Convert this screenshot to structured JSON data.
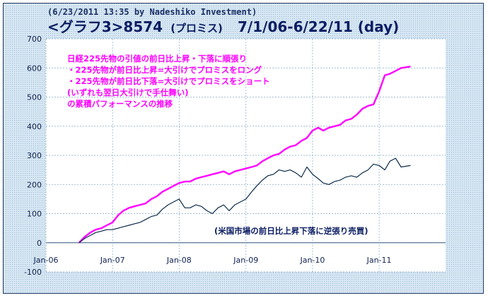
{
  "header": {
    "line1": "(6/23/2011 13:35 by Nadeshiko Investment)",
    "title_main": "<グラフ3>8574",
    "title_sub": "(プロミス)",
    "title_range": "7/1/06-6/22/11 (day)"
  },
  "annotations": {
    "pink": [
      "日経225先物の引値の前日比上昇・下落に順張り",
      "・225先物が前日比上昇=大引けでプロミスをロング",
      "・225先物が前日比下落=大引けでプロミスをショート",
      "(いずれも翌日大引けで手仕舞い)",
      "の累積パフォーマンスの推移"
    ],
    "navy": "(米国市場の前日比上昇下落に逆張り売買)"
  },
  "colors": {
    "background": "#cfe0ee",
    "plot_background": "#ffffff",
    "series1": "#ff00ff",
    "series2": "#0b2a4a",
    "text": "#0b1d63"
  },
  "chart_data": {
    "type": "line",
    "title": "<グラフ3>8574 (プロミス) 7/1/06-6/22/11 (day)",
    "xlabel": "",
    "ylabel": "",
    "x_ticks": [
      "Jan-06",
      "Jan-07",
      "Jan-08",
      "Jan-09",
      "Jan-10",
      "Jan-11"
    ],
    "y_ticks": [
      700,
      600,
      500,
      400,
      300,
      200,
      100,
      0,
      -100
    ],
    "ylim": [
      -100,
      700
    ],
    "xlim": [
      "2006-01-01",
      "2011-12-31"
    ],
    "grid": true,
    "series": [
      {
        "x": [
          "2006-07-01",
          "2006-08-01",
          "2006-09-01",
          "2006-10-01",
          "2006-11-01",
          "2006-12-01",
          "2007-01-01",
          "2007-02-01",
          "2007-03-01",
          "2007-04-01",
          "2007-05-01",
          "2007-06-01",
          "2007-07-01",
          "2007-08-01",
          "2007-09-01",
          "2007-10-01",
          "2007-11-01",
          "2007-12-01",
          "2008-01-01",
          "2008-02-01",
          "2008-03-01",
          "2008-04-01",
          "2008-05-01",
          "2008-06-01",
          "2008-07-01",
          "2008-08-01",
          "2008-09-01",
          "2008-10-01",
          "2008-11-01",
          "2008-12-01",
          "2009-01-01",
          "2009-02-01",
          "2009-03-01",
          "2009-04-01",
          "2009-05-01",
          "2009-06-01",
          "2009-07-01",
          "2009-08-01",
          "2009-09-01",
          "2009-10-01",
          "2009-11-01",
          "2009-12-01",
          "2010-01-01",
          "2010-02-01",
          "2010-03-01",
          "2010-04-01",
          "2010-05-01",
          "2010-06-01",
          "2010-07-01",
          "2010-08-01",
          "2010-09-01",
          "2010-10-01",
          "2010-11-01",
          "2010-12-01",
          "2011-01-01",
          "2011-02-01",
          "2011-03-01",
          "2011-04-01",
          "2011-05-01",
          "2011-06-22"
        ],
        "values": [
          0,
          20,
          35,
          45,
          50,
          60,
          70,
          95,
          110,
          120,
          125,
          130,
          135,
          150,
          160,
          175,
          185,
          195,
          205,
          210,
          210,
          220,
          225,
          230,
          235,
          240,
          245,
          235,
          245,
          250,
          255,
          260,
          265,
          280,
          290,
          300,
          305,
          320,
          330,
          335,
          350,
          360,
          385,
          395,
          385,
          395,
          400,
          405,
          420,
          425,
          440,
          460,
          470,
          475,
          520,
          575,
          580,
          590,
          600,
          605
        ]
      },
      {
        "x": [
          "2006-07-01",
          "2006-08-01",
          "2006-09-01",
          "2006-10-01",
          "2006-11-01",
          "2006-12-01",
          "2007-01-01",
          "2007-02-01",
          "2007-03-01",
          "2007-04-01",
          "2007-05-01",
          "2007-06-01",
          "2007-07-01",
          "2007-08-01",
          "2007-09-01",
          "2007-10-01",
          "2007-11-01",
          "2007-12-01",
          "2008-01-01",
          "2008-02-01",
          "2008-03-01",
          "2008-04-01",
          "2008-05-01",
          "2008-06-01",
          "2008-07-01",
          "2008-08-01",
          "2008-09-01",
          "2008-10-01",
          "2008-11-01",
          "2008-12-01",
          "2009-01-01",
          "2009-02-01",
          "2009-03-01",
          "2009-04-01",
          "2009-05-01",
          "2009-06-01",
          "2009-07-01",
          "2009-08-01",
          "2009-09-01",
          "2009-10-01",
          "2009-11-01",
          "2009-12-01",
          "2010-01-01",
          "2010-02-01",
          "2010-03-01",
          "2010-04-01",
          "2010-05-01",
          "2010-06-01",
          "2010-07-01",
          "2010-08-01",
          "2010-09-01",
          "2010-10-01",
          "2010-11-01",
          "2010-12-01",
          "2011-01-01",
          "2011-02-01",
          "2011-03-01",
          "2011-04-01",
          "2011-05-01",
          "2011-06-22"
        ],
        "values": [
          0,
          15,
          25,
          35,
          40,
          45,
          45,
          50,
          55,
          60,
          65,
          70,
          80,
          90,
          95,
          115,
          130,
          140,
          150,
          120,
          120,
          130,
          125,
          110,
          100,
          120,
          130,
          110,
          130,
          140,
          150,
          175,
          195,
          215,
          230,
          235,
          250,
          245,
          250,
          240,
          225,
          260,
          235,
          220,
          205,
          200,
          210,
          215,
          225,
          230,
          225,
          240,
          250,
          270,
          265,
          250,
          280,
          290,
          260,
          265
        ]
      }
    ]
  }
}
